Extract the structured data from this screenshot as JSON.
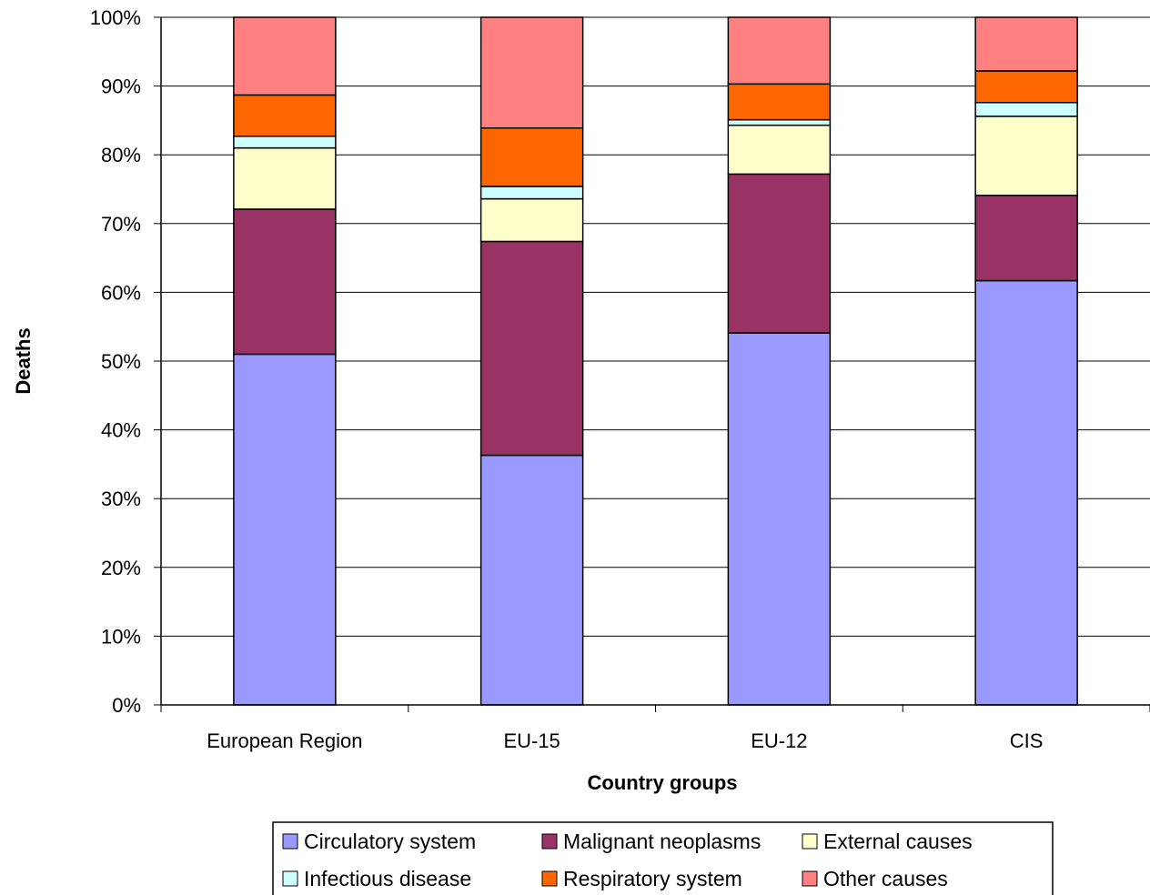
{
  "chart_data": {
    "type": "bar",
    "stacked": true,
    "percent": true,
    "categories": [
      "European Region",
      "EU-15",
      "EU-12",
      "CIS"
    ],
    "series": [
      {
        "name": "Circulatory system",
        "color": "#9999ff",
        "values": [
          51.0,
          36.3,
          54.1,
          61.7
        ]
      },
      {
        "name": "Malignant neoplasms",
        "color": "#993366",
        "values": [
          21.1,
          31.1,
          23.1,
          12.4
        ]
      },
      {
        "name": "External causes",
        "color": "#ffffcc",
        "values": [
          8.9,
          6.2,
          7.1,
          11.5
        ]
      },
      {
        "name": "Infectious disease",
        "color": "#ccffff",
        "values": [
          1.7,
          1.8,
          0.8,
          2.0
        ]
      },
      {
        "name": "Respiratory system",
        "color": "#ff6600",
        "values": [
          6.0,
          8.5,
          5.2,
          4.6
        ]
      },
      {
        "name": "Other causes",
        "color": "#ff8080",
        "values": [
          11.3,
          16.1,
          9.7,
          7.8
        ]
      }
    ],
    "xlabel": "Country groups",
    "ylabel": "Deaths",
    "ylim": [
      0,
      100
    ],
    "yticks": [
      "0%",
      "10%",
      "20%",
      "30%",
      "40%",
      "50%",
      "60%",
      "70%",
      "80%",
      "90%",
      "100%"
    ],
    "grid": true,
    "legend_position": "bottom"
  }
}
